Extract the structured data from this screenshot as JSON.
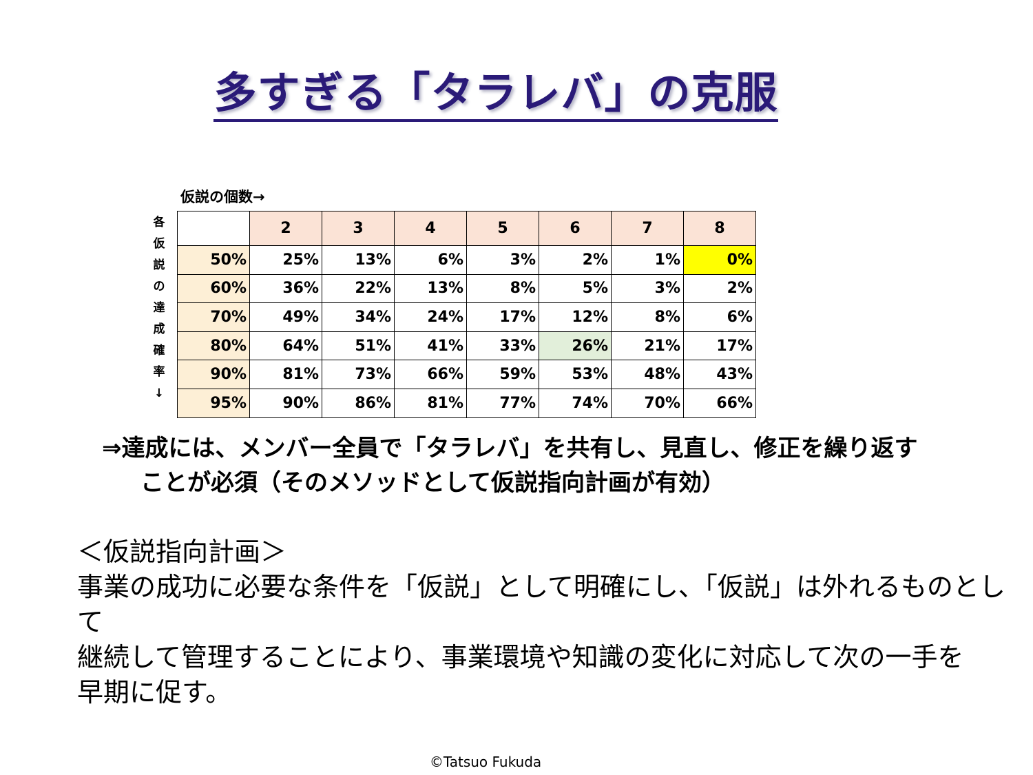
{
  "title": "多すぎる「タラレバ」の克服",
  "table": {
    "column_caption": "仮説の個数→",
    "row_caption": [
      "各",
      "仮",
      "説",
      "の",
      "達",
      "成",
      "確",
      "率",
      "↓"
    ],
    "headers": [
      "",
      "2",
      "3",
      "4",
      "5",
      "6",
      "7",
      "8"
    ],
    "rows": [
      {
        "label": "50%",
        "cells": [
          "25%",
          "13%",
          "6%",
          "3%",
          "2%",
          "1%",
          "0%"
        ]
      },
      {
        "label": "60%",
        "cells": [
          "36%",
          "22%",
          "13%",
          "8%",
          "5%",
          "3%",
          "2%"
        ]
      },
      {
        "label": "70%",
        "cells": [
          "49%",
          "34%",
          "24%",
          "17%",
          "12%",
          "8%",
          "6%"
        ]
      },
      {
        "label": "80%",
        "cells": [
          "64%",
          "51%",
          "41%",
          "33%",
          "26%",
          "21%",
          "17%"
        ]
      },
      {
        "label": "90%",
        "cells": [
          "81%",
          "73%",
          "66%",
          "59%",
          "53%",
          "48%",
          "43%"
        ]
      },
      {
        "label": "95%",
        "cells": [
          "90%",
          "86%",
          "81%",
          "77%",
          "74%",
          "70%",
          "66%"
        ]
      }
    ],
    "highlight_colors": {
      "yellow": "#ffff00",
      "green": "#e2efda",
      "header": "#fbe3d6",
      "row_header": "#fdefd6"
    }
  },
  "conclusion": {
    "line1": "⇒達成には、メンバー全員で「タラレバ」を共有し、見直し、修正を繰り返す",
    "line2": "ことが必須（そのメソッドとして仮説指向計画が有効）"
  },
  "plan": {
    "heading": "＜仮説指向計画＞",
    "line1": "事業の成功に必要な条件を「仮説」として明確にし、「仮説」は外れるものとして",
    "line2": "継続して管理することにより、事業環境や知識の変化に対応して次の一手を",
    "line3": "早期に促す。"
  },
  "copyright": "©Tatsuo Fukuda",
  "colors": {
    "title": "#2a1a78"
  }
}
